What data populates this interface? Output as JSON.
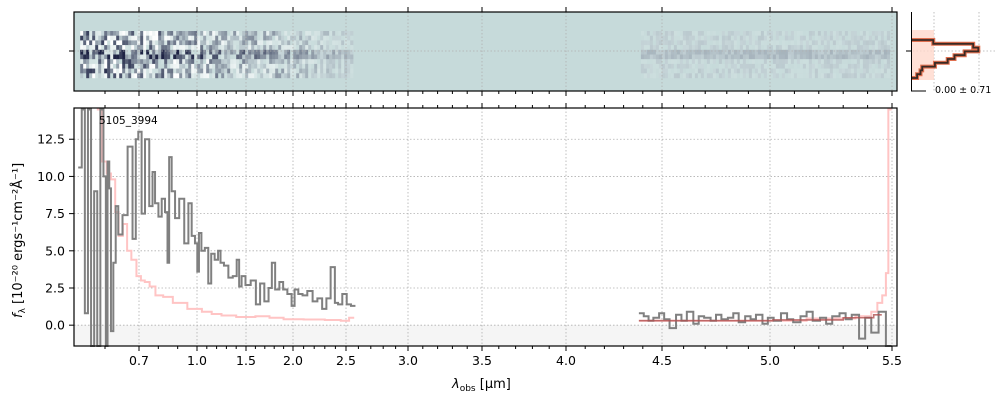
{
  "chart_data": {
    "type": "line",
    "object_label": "5105_3994",
    "xlabel": "λ",
    "xlabel_sub": "obs",
    "xlabel_unit": " [μm]",
    "ylabel": "f",
    "ylabel_sub": "λ",
    "ylabel_unit": " [10⁻²⁰ ergs⁻¹cm⁻²Å⁻¹]",
    "xlim": [
      0.55,
      5.52
    ],
    "ylim": [
      -1.4,
      14.6
    ],
    "x_scale": "nonlinear (compressed at short wavelengths)",
    "grid": true,
    "xticks": [
      "0.7",
      "1.0",
      "1.5",
      "2.0",
      "2.5",
      "3.0",
      "3.5",
      "4.0",
      "4.5",
      "5.0",
      "5.5"
    ],
    "xtick_values": [
      0.7,
      1.0,
      1.5,
      2.0,
      2.5,
      3.0,
      3.5,
      4.0,
      4.5,
      5.0,
      5.5
    ],
    "yticks": [
      "0.0",
      "2.5",
      "5.0",
      "7.5",
      "10.0",
      "12.5"
    ],
    "ytick_values": [
      0,
      2.5,
      5,
      7.5,
      10,
      12.5
    ],
    "colors": {
      "flux": "#808080",
      "error": "#ffc4c4",
      "model": "#b05050",
      "negative_region": "#f5f5f5",
      "image_bg": "#c6dada"
    },
    "series": [
      {
        "role": "flux",
        "segment": 1,
        "x": [
          0.56,
          0.565,
          0.57,
          0.575,
          0.58,
          0.585,
          0.59,
          0.595,
          0.6,
          0.605,
          0.61,
          0.615,
          0.62,
          0.629,
          0.634,
          0.644,
          0.659,
          0.674,
          0.688,
          0.693,
          0.705,
          0.722,
          0.74,
          0.766,
          0.774,
          0.792,
          0.809,
          0.826,
          0.843,
          0.852,
          0.86,
          0.878,
          0.895,
          0.921,
          0.947,
          0.964,
          0.981,
          0.998,
          1.01,
          1.03,
          1.06,
          1.1,
          1.13,
          1.16,
          1.2,
          1.23,
          1.25,
          1.3,
          1.34,
          1.39,
          1.42,
          1.44,
          1.47,
          1.52,
          1.58,
          1.63,
          1.67,
          1.72,
          1.76,
          1.79,
          1.83,
          1.88,
          1.91,
          1.97,
          2.0,
          2.03,
          2.07,
          2.11,
          2.16,
          2.21,
          2.25,
          2.3,
          2.33,
          2.38,
          2.41,
          2.44,
          2.49,
          2.52,
          2.56
        ],
        "y": [
          10.6,
          14.5,
          0.8,
          14.5,
          -1.5,
          9,
          -1.5,
          14.5,
          10,
          -1.5,
          11,
          9.2,
          -0.4,
          4.2,
          8,
          6.1,
          7.4,
          12,
          5.8,
          12.5,
          13,
          7.5,
          12.5,
          8,
          10.3,
          8.2,
          7.3,
          8.5,
          7.6,
          4.2,
          11.3,
          9.0,
          7.2,
          8.5,
          5.5,
          8.2,
          6,
          5.5,
          3.6,
          6.2,
          5,
          5.2,
          2.8,
          4.8,
          4.4,
          5,
          4.2,
          4,
          3.2,
          3.3,
          4.4,
          2.6,
          3.3,
          2.7,
          3.0,
          1.4,
          2.8,
          1.6,
          2.5,
          4.2,
          2.4,
          2.9,
          2.4,
          2.1,
          1.3,
          2.4,
          2.1,
          2.0,
          2.3,
          1.6,
          1.8,
          1.1,
          1.8,
          3.9,
          1.5,
          1.4,
          2.1,
          1.4,
          1.3
        ]
      },
      {
        "role": "error",
        "segment": 1,
        "x": [
          0.59,
          0.6,
          0.61,
          0.625,
          0.635,
          0.645,
          0.66,
          0.67,
          0.685,
          0.7,
          0.72,
          0.74,
          0.77,
          0.8,
          0.85,
          0.9,
          1.0,
          1.1,
          1.2,
          1.3,
          1.5,
          1.7,
          1.8,
          2.0,
          2.2,
          2.4,
          2.5,
          2.55
        ],
        "y": [
          14.5,
          11,
          10.2,
          9.8,
          7.6,
          6.0,
          6.8,
          5.0,
          4.4,
          3.3,
          3.0,
          2.9,
          2.6,
          2.0,
          1.9,
          1.5,
          1.1,
          0.9,
          0.75,
          0.65,
          0.55,
          0.6,
          0.5,
          0.4,
          0.38,
          0.35,
          0.3,
          0.5
        ]
      },
      {
        "role": "flux",
        "segment": 2,
        "x": [
          4.39,
          4.42,
          4.44,
          4.47,
          4.5,
          4.52,
          4.55,
          4.58,
          4.6,
          4.63,
          4.66,
          4.68,
          4.71,
          4.74,
          4.76,
          4.79,
          4.82,
          4.84,
          4.87,
          4.9,
          4.92,
          4.95,
          4.98,
          5.0,
          5.03,
          5.06,
          5.08,
          5.11,
          5.14,
          5.16,
          5.19,
          5.22,
          5.24,
          5.27,
          5.3,
          5.32,
          5.35,
          5.38,
          5.4,
          5.43,
          5.46,
          5.49
        ],
        "y": [
          0.8,
          0.6,
          0.3,
          0.5,
          0.8,
          0.4,
          -0.2,
          0.7,
          0.3,
          0.9,
          0.1,
          0.6,
          0.5,
          0.3,
          0.7,
          0.4,
          0.5,
          0.8,
          0.2,
          0.6,
          0.4,
          0.7,
          0.1,
          0.5,
          0.3,
          0.8,
          0.4,
          0.2,
          0.6,
          0.9,
          0.3,
          0.5,
          0.1,
          0.6,
          0.8,
          0.4,
          0.7,
          -0.9,
          0.5,
          -0.5,
          0.9,
          -1.5
        ]
      },
      {
        "role": "error",
        "segment": 2,
        "x": [
          4.39,
          5.0,
          5.3,
          5.4,
          5.43,
          5.45,
          5.47,
          5.48,
          5.49
        ],
        "y": [
          0.3,
          0.3,
          0.45,
          0.6,
          0.9,
          1.5,
          2.0,
          3.5,
          14.5
        ]
      },
      {
        "role": "model",
        "segment": 2,
        "x": [
          4.39,
          4.8,
          5.2,
          5.4,
          5.45
        ],
        "y": [
          0.3,
          0.3,
          0.35,
          0.5,
          0.7
        ]
      }
    ],
    "residual_histogram": {
      "label": "0.00 ± 0.71",
      "counts": [
        0.25,
        0.72,
        0.78,
        0.62,
        0.5,
        0.42,
        0.27,
        0.12,
        0.1,
        0.06
      ]
    }
  }
}
